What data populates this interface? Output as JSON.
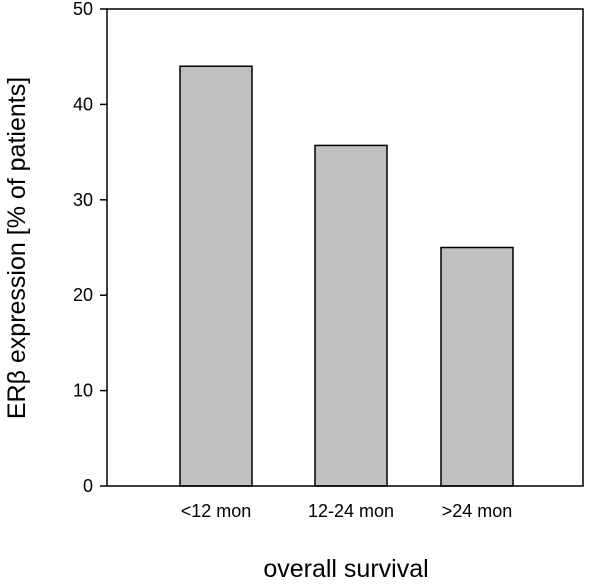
{
  "chart_data": {
    "type": "bar",
    "title": "",
    "xlabel": "overall survival",
    "ylabel": "ERβ expression [% of patients]",
    "categories": [
      "<12 mon",
      "12-24 mon",
      ">24 mon"
    ],
    "values": [
      44,
      35.7,
      25
    ],
    "ylim": [
      0,
      50
    ],
    "yticks": [
      0,
      10,
      20,
      30,
      40,
      50
    ],
    "grid": false,
    "legend": "none",
    "bar_color": "#c0c0c0",
    "bar_edge_color": "#000000"
  }
}
